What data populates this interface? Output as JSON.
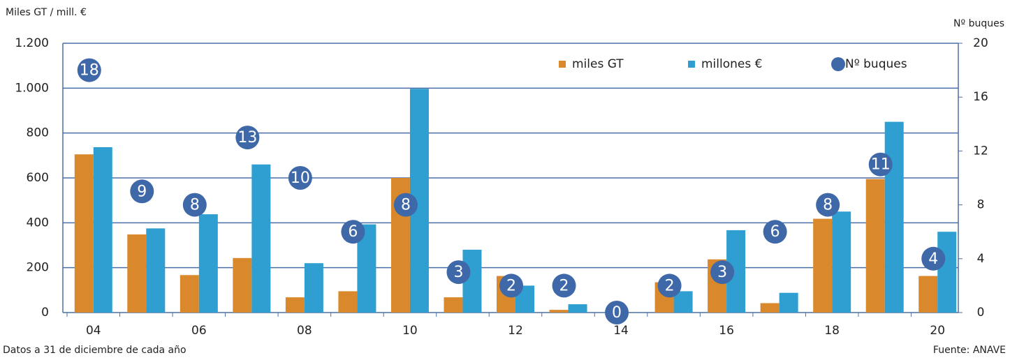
{
  "chart_data": {
    "type": "bar",
    "y_label": "Miles GT / mill. €",
    "y2_label": "Nº buques",
    "note": "Datos a 31 de diciembre de cada año",
    "source": "Fuente: ANAVE",
    "categories": [
      "04",
      null,
      "06",
      null,
      "08",
      null,
      "10",
      null,
      "12",
      null,
      "14",
      null,
      "16",
      null,
      "18",
      null,
      "20"
    ],
    "series": [
      {
        "name": "miles GT",
        "color": "#d9892b",
        "values": [
          705,
          348,
          167,
          243,
          68,
          95,
          600,
          68,
          163,
          12,
          0,
          135,
          237,
          42,
          418,
          595,
          163
        ]
      },
      {
        "name": "millones €",
        "color": "#2e9fd0",
        "values": [
          737,
          375,
          438,
          660,
          220,
          393,
          997,
          280,
          120,
          37,
          0,
          95,
          367,
          88,
          450,
          850,
          360
        ]
      },
      {
        "name": "Nº buques",
        "color": "#3f68a8",
        "axis": "y2",
        "type": "scatter",
        "values": [
          18,
          9,
          8,
          13,
          10,
          6,
          8,
          3,
          2,
          2,
          0,
          2,
          3,
          6,
          8,
          11,
          4
        ]
      }
    ],
    "ylim": [
      0,
      1200
    ],
    "yticks": [
      0,
      200,
      400,
      600,
      800,
      {
        "value": 1000,
        "label": "1.000"
      },
      {
        "value": 1200,
        "label": "1.200"
      }
    ],
    "y2lim": [
      0,
      20
    ],
    "y2ticks": [
      0,
      4,
      8,
      12,
      16,
      20
    ],
    "grid": true
  }
}
